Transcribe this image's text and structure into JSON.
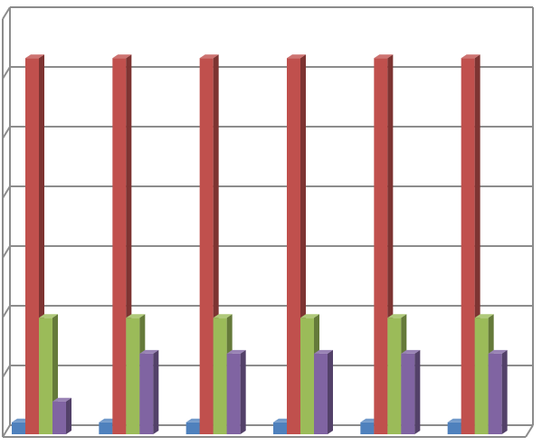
{
  "chart_data": {
    "type": "bar",
    "style": "3d-clustered-column",
    "categories": [
      "",
      "",
      "",
      "",
      "",
      ""
    ],
    "series": [
      {
        "values": [
          0.2,
          0.2,
          0.2,
          0.2,
          0.2,
          0.2
        ],
        "color": "#4F81BD"
      },
      {
        "values": [
          6.3,
          6.3,
          6.3,
          6.3,
          6.3,
          6.3
        ],
        "color": "#C0504D"
      },
      {
        "values": [
          1.95,
          1.95,
          1.95,
          1.95,
          1.95,
          1.95
        ],
        "color": "#9BBB59"
      },
      {
        "values": [
          0.55,
          1.35,
          1.35,
          1.35,
          1.35,
          1.35
        ],
        "color": "#8064A2"
      }
    ],
    "ylim": [
      0,
      7
    ],
    "grid": true,
    "legend": "none",
    "title": "",
    "xlabel": "",
    "ylabel": ""
  }
}
